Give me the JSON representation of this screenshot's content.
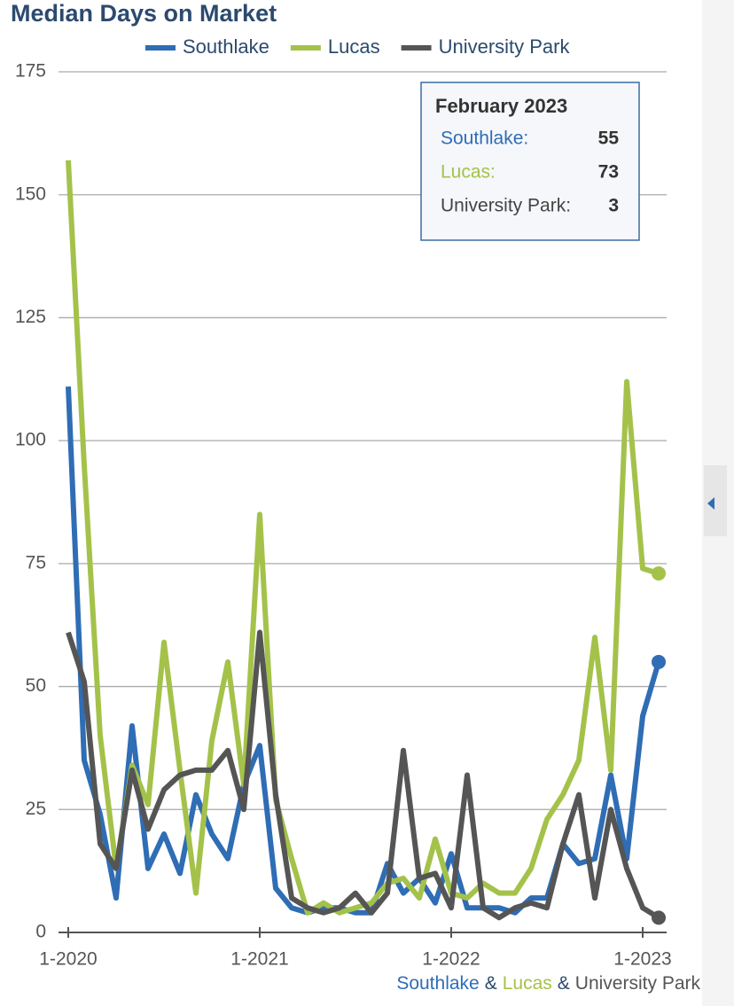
{
  "chart_data": {
    "type": "line",
    "title": "Median Days on Market",
    "categories": [
      "1-2020",
      null,
      null,
      null,
      null,
      null,
      null,
      null,
      null,
      null,
      null,
      null,
      "1-2021",
      null,
      null,
      null,
      null,
      null,
      null,
      null,
      null,
      null,
      null,
      null,
      "1-2022",
      null,
      null,
      null,
      null,
      null,
      null,
      null,
      null,
      null,
      null,
      null,
      "1-2023",
      null
    ],
    "series": [
      {
        "name": "Southlake",
        "color": "#2f6db5",
        "values": [
          111,
          35,
          24,
          7,
          42,
          13,
          20,
          12,
          28,
          20,
          15,
          30,
          38,
          9,
          5,
          4,
          5,
          5,
          4,
          4,
          14,
          8,
          11,
          6,
          16,
          5,
          5,
          5,
          4,
          7,
          7,
          18,
          14,
          15,
          32,
          15,
          44,
          55
        ]
      },
      {
        "name": "Lucas",
        "color": "#a4c24a",
        "values": [
          157,
          95,
          40,
          13,
          34,
          26,
          59,
          33,
          8,
          39,
          55,
          30,
          85,
          27,
          15,
          4,
          6,
          4,
          5,
          6,
          10,
          11,
          7,
          19,
          8,
          7,
          10,
          8,
          8,
          13,
          23,
          28,
          35,
          60,
          33,
          112,
          74,
          73
        ]
      },
      {
        "name": "University Park",
        "color": "#555555",
        "values": [
          61,
          51,
          18,
          13,
          33,
          21,
          29,
          32,
          33,
          33,
          37,
          25,
          61,
          28,
          7,
          5,
          4,
          5,
          8,
          4,
          8,
          37,
          11,
          12,
          5,
          32,
          5,
          3,
          5,
          6,
          5,
          18,
          28,
          7,
          25,
          13,
          5,
          3
        ]
      }
    ],
    "ylim": [
      0,
      175
    ],
    "yticks": [
      0,
      25,
      50,
      75,
      100,
      125,
      150,
      175
    ],
    "grid": true,
    "tooltip": {
      "title": "February 2023",
      "labels": [
        "Southlake:",
        "Lucas:",
        "University Park:"
      ]
    },
    "footer_separator": "&"
  }
}
